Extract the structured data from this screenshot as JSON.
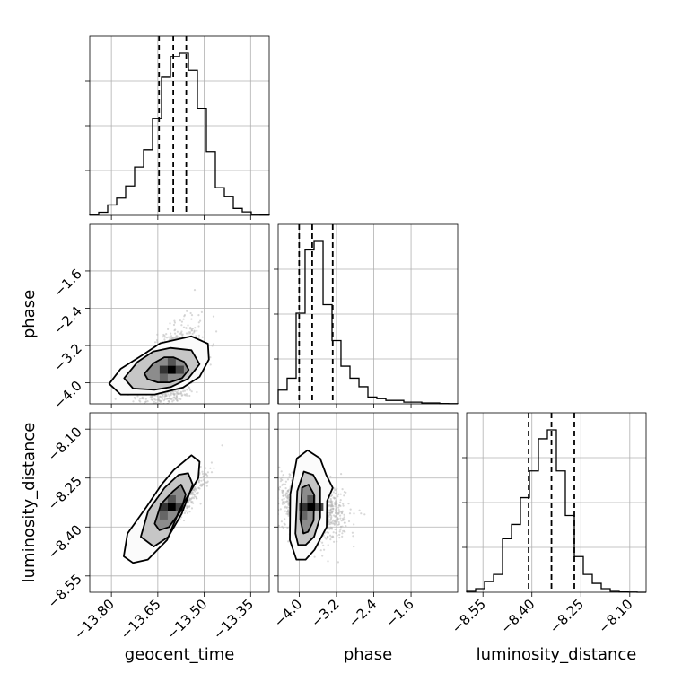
{
  "chart_data": {
    "type": "corner",
    "parameters": [
      "geocent_time",
      "phase",
      "luminosity_distance"
    ],
    "colors": {
      "line": "#000000",
      "grid": "#b0b0b0",
      "scatter": "#b8b8b8",
      "hist_fill": "#000000"
    },
    "grid": true,
    "axes": {
      "geocent_time": {
        "range": [
          -13.87,
          -13.29
        ],
        "ticks": [
          -13.8,
          -13.65,
          -13.5,
          -13.35
        ],
        "tick_labels": [
          "−13.80",
          "−13.65",
          "−13.50",
          "−13.35"
        ]
      },
      "phase": {
        "range": [
          -4.45,
          -0.6
        ],
        "ticks": [
          -4.0,
          -3.2,
          -2.4,
          -1.6
        ],
        "tick_labels": [
          "−4.0",
          "−3.2",
          "−2.4",
          "−1.6"
        ]
      },
      "luminosity_distance": {
        "range": [
          -8.6,
          -8.05
        ],
        "ticks": [
          -8.55,
          -8.4,
          -8.25,
          -8.1
        ],
        "tick_labels": [
          "−8.55",
          "−8.40",
          "−8.25",
          "−8.10"
        ]
      }
    },
    "histograms": {
      "geocent_time": {
        "bin_edges": [
          -13.87,
          -13.841,
          -13.812,
          -13.783,
          -13.754,
          -13.725,
          -13.696,
          -13.667,
          -13.638,
          -13.609,
          -13.58,
          -13.551,
          -13.522,
          -13.493,
          -13.464,
          -13.435,
          -13.406,
          -13.377,
          -13.348,
          -13.319,
          -13.29
        ],
        "counts": [
          0.005,
          0.018,
          0.06,
          0.1,
          0.17,
          0.28,
          0.38,
          0.56,
          0.8,
          0.92,
          0.94,
          0.84,
          0.62,
          0.37,
          0.16,
          0.11,
          0.04,
          0.02,
          0.005,
          0.002
        ],
        "quantiles": [
          -13.646,
          -13.6,
          -13.558
        ]
      },
      "phase": {
        "bin_edges": [
          -4.45,
          -4.258,
          -4.065,
          -3.873,
          -3.68,
          -3.487,
          -3.295,
          -3.103,
          -2.91,
          -2.717,
          -2.525,
          -2.333,
          -2.14,
          -1.948,
          -1.755,
          -1.563,
          -1.37,
          -1.178,
          -0.985,
          -0.793,
          -0.6
        ],
        "counts": [
          0.08,
          0.15,
          0.53,
          0.9,
          0.95,
          0.58,
          0.37,
          0.22,
          0.15,
          0.1,
          0.04,
          0.03,
          0.02,
          0.02,
          0.01,
          0.01,
          0.005,
          0.005,
          0.002,
          0.001
        ],
        "quantiles": [
          -4.0,
          -3.72,
          -3.28
        ]
      },
      "luminosity_distance": {
        "bin_edges": [
          -8.6,
          -8.5725,
          -8.545,
          -8.5175,
          -8.49,
          -8.4625,
          -8.435,
          -8.4075,
          -8.38,
          -8.3525,
          -8.325,
          -8.2975,
          -8.27,
          -8.2425,
          -8.215,
          -8.1875,
          -8.16,
          -8.1325,
          -8.105,
          -8.0775,
          -8.05
        ],
        "counts": [
          0.005,
          0.02,
          0.06,
          0.1,
          0.3,
          0.38,
          0.53,
          0.68,
          0.86,
          0.91,
          0.68,
          0.43,
          0.2,
          0.1,
          0.05,
          0.02,
          0.005,
          0.002,
          0.001,
          0.0
        ],
        "quantiles": [
          -8.41,
          -8.34,
          -8.27
        ]
      }
    },
    "pairs": [
      {
        "x": "geocent_time",
        "y": "phase",
        "mean": [
          -13.605,
          -3.72
        ],
        "std": [
          0.045,
          0.45
        ],
        "corr": 0.45,
        "contours": [
          [
            [
              -13.693,
              -3.803
            ],
            [
              -13.664,
              -3.58
            ],
            [
              -13.629,
              -3.45
            ],
            [
              -13.6,
              -3.45
            ],
            [
              -13.565,
              -3.55
            ],
            [
              -13.55,
              -3.72
            ],
            [
              -13.572,
              -3.9
            ],
            [
              -13.611,
              -3.99
            ],
            [
              -13.65,
              -3.99
            ],
            [
              -13.683,
              -3.92
            ]
          ],
          [
            [
              -13.759,
              -3.9
            ],
            [
              -13.715,
              -3.55
            ],
            [
              -13.665,
              -3.33
            ],
            [
              -13.61,
              -3.25
            ],
            [
              -13.541,
              -3.3
            ],
            [
              -13.515,
              -3.6
            ],
            [
              -13.552,
              -3.91
            ],
            [
              -13.608,
              -4.09
            ],
            [
              -13.661,
              -4.15
            ],
            [
              -13.73,
              -4.12
            ]
          ],
          [
            [
              -13.807,
              -4.02
            ],
            [
              -13.77,
              -3.7
            ],
            [
              -13.696,
              -3.39
            ],
            [
              -13.642,
              -3.15
            ],
            [
              -13.542,
              -3.0
            ],
            [
              -13.488,
              -3.16
            ],
            [
              -13.485,
              -3.5
            ],
            [
              -13.515,
              -3.87
            ],
            [
              -13.568,
              -4.1
            ],
            [
              -13.66,
              -4.25
            ],
            [
              -13.77,
              -4.25
            ]
          ]
        ]
      },
      {
        "x": "geocent_time",
        "y": "luminosity_distance",
        "mean": [
          -13.605,
          -8.34
        ],
        "std": [
          0.045,
          0.045
        ],
        "corr": 0.85,
        "contours": [
          [
            [
              -13.66,
              -8.39
            ],
            [
              -13.64,
              -8.33
            ],
            [
              -13.6,
              -8.29
            ],
            [
              -13.575,
              -8.27
            ],
            [
              -13.56,
              -8.3
            ],
            [
              -13.575,
              -8.35
            ],
            [
              -13.614,
              -8.4
            ],
            [
              -13.645,
              -8.41
            ]
          ],
          [
            [
              -13.705,
              -8.43
            ],
            [
              -13.681,
              -8.35
            ],
            [
              -13.628,
              -8.28
            ],
            [
              -13.583,
              -8.24
            ],
            [
              -13.552,
              -8.235
            ],
            [
              -13.537,
              -8.27
            ],
            [
              -13.573,
              -8.36
            ],
            [
              -13.616,
              -8.43
            ],
            [
              -13.663,
              -8.46
            ]
          ],
          [
            [
              -13.76,
              -8.49
            ],
            [
              -13.748,
              -8.42
            ],
            [
              -13.688,
              -8.34
            ],
            [
              -13.638,
              -8.27
            ],
            [
              -13.598,
              -8.225
            ],
            [
              -13.541,
              -8.18
            ],
            [
              -13.515,
              -8.2
            ],
            [
              -13.519,
              -8.25
            ],
            [
              -13.581,
              -8.35
            ],
            [
              -13.62,
              -8.44
            ],
            [
              -13.682,
              -8.5
            ],
            [
              -13.73,
              -8.51
            ]
          ]
        ]
      },
      {
        "x": "phase",
        "y": "luminosity_distance",
        "mean": [
          -3.74,
          -8.34
        ],
        "std": [
          0.35,
          0.045
        ],
        "corr": -0.25,
        "contours": [
          [
            [
              -3.97,
              -8.38
            ],
            [
              -3.94,
              -8.28
            ],
            [
              -3.8,
              -8.27
            ],
            [
              -3.68,
              -8.3
            ],
            [
              -3.69,
              -8.38
            ],
            [
              -3.81,
              -8.415
            ],
            [
              -3.91,
              -8.42
            ]
          ],
          [
            [
              -4.08,
              -8.42
            ],
            [
              -4.04,
              -8.29
            ],
            [
              -3.9,
              -8.23
            ],
            [
              -3.7,
              -8.24
            ],
            [
              -3.55,
              -8.28
            ],
            [
              -3.55,
              -8.37
            ],
            [
              -3.68,
              -8.43
            ],
            [
              -3.86,
              -8.455
            ],
            [
              -4.02,
              -8.455
            ]
          ],
          [
            [
              -4.2,
              -8.44
            ],
            [
              -4.19,
              -8.3
            ],
            [
              -4.05,
              -8.19
            ],
            [
              -3.82,
              -8.165
            ],
            [
              -3.55,
              -8.19
            ],
            [
              -3.42,
              -8.24
            ],
            [
              -3.28,
              -8.28
            ],
            [
              -3.4,
              -8.32
            ],
            [
              -3.41,
              -8.4
            ],
            [
              -3.67,
              -8.47
            ],
            [
              -3.86,
              -8.5
            ],
            [
              -4.06,
              -8.5
            ]
          ]
        ]
      }
    ],
    "xlabels": {
      "geocent_time": "geocent_time",
      "phase": "phase",
      "luminosity_distance": "luminosity_distance"
    },
    "ylabels": {
      "phase": "phase",
      "luminosity_distance": "luminosity_distance"
    }
  }
}
